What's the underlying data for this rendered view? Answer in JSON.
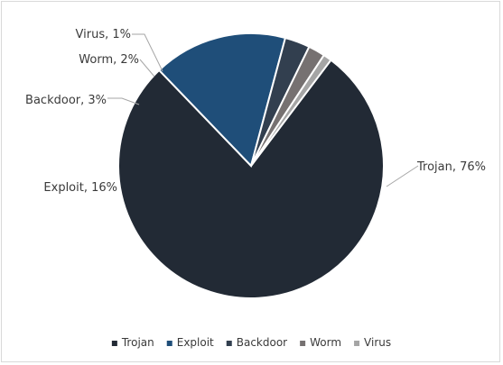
{
  "chart_data": {
    "type": "pie",
    "title": "",
    "legend_position": "bottom",
    "slices": [
      {
        "name": "Trojan",
        "value": 76,
        "label": "Trojan, 76%",
        "color": "#222a35"
      },
      {
        "name": "Exploit",
        "value": 16,
        "label": "Exploit, 16%",
        "color": "#1f4e79"
      },
      {
        "name": "Backdoor",
        "value": 3,
        "label": "Backdoor, 3%",
        "color": "#323f4f"
      },
      {
        "name": "Worm",
        "value": 2,
        "label": "Worm, 2%",
        "color": "#767171"
      },
      {
        "name": "Virus",
        "value": 1,
        "label": "Virus, 1%",
        "color": "#a5a5a5"
      }
    ]
  }
}
